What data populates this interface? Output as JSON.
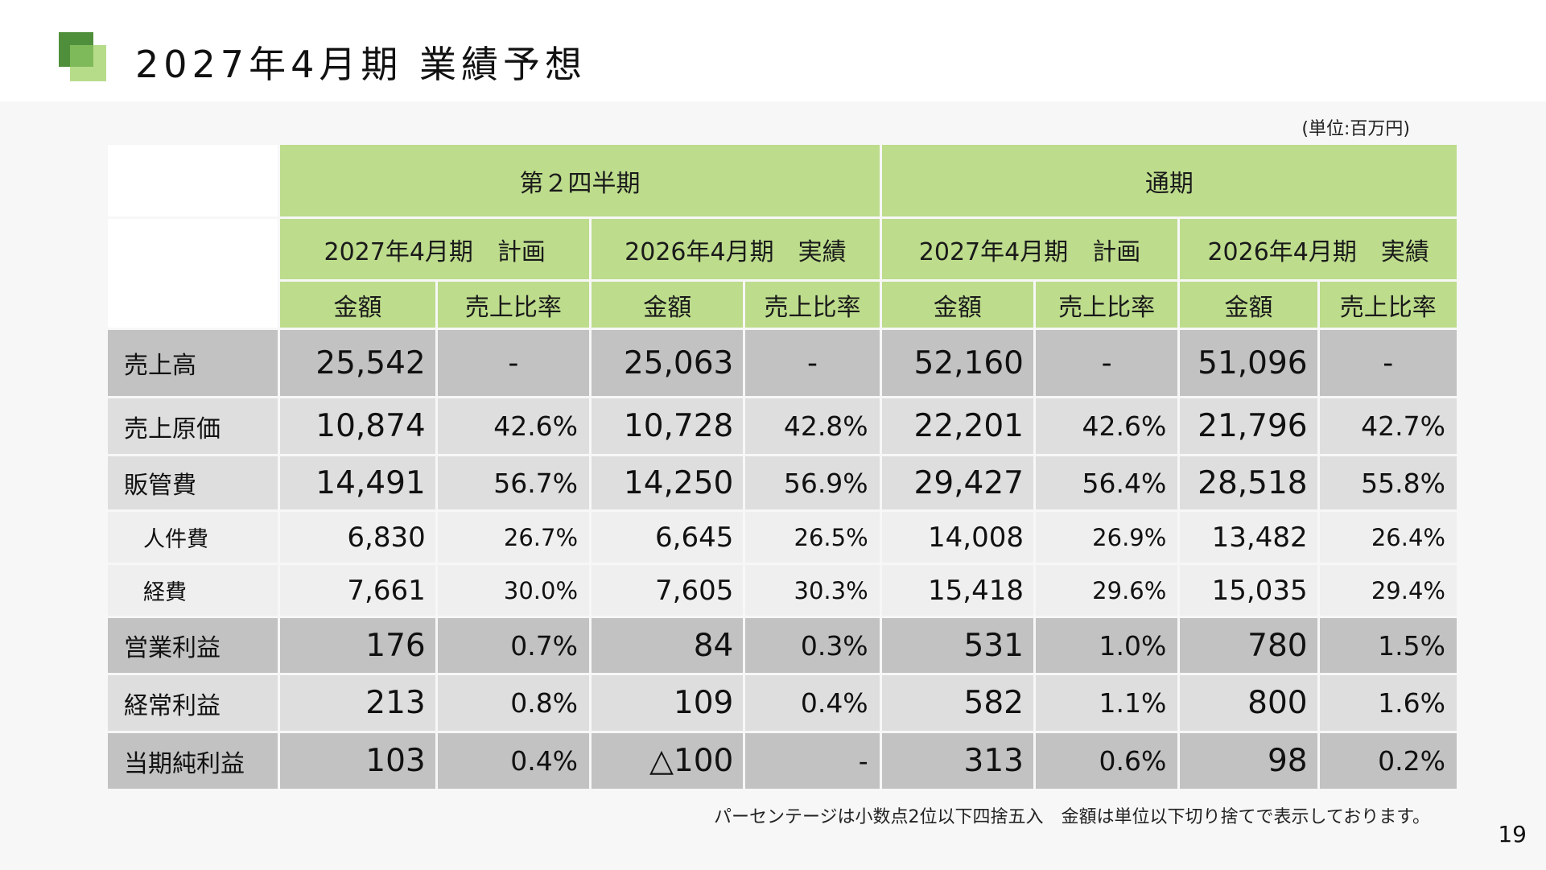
{
  "header": {
    "title": "2027年4月期 業績予想"
  },
  "unit_label": "(単位:百万円)",
  "table": {
    "group_headers": [
      "第２四半期",
      "通期"
    ],
    "period_headers": [
      "2027年4月期　計画",
      "2026年4月期　実績",
      "2027年4月期　計画",
      "2026年4月期　実績"
    ],
    "sub_headers": [
      "金額",
      "売上比率",
      "金額",
      "売上比率",
      "金額",
      "売上比率",
      "金額",
      "売上比率"
    ],
    "rows": [
      {
        "label": "売上高",
        "cells": [
          "25,542",
          "-",
          "25,063",
          "-",
          "52,160",
          "-",
          "51,096",
          "-"
        ]
      },
      {
        "label": "売上原価",
        "cells": [
          "10,874",
          "42.6%",
          "10,728",
          "42.8%",
          "22,201",
          "42.6%",
          "21,796",
          "42.7%"
        ]
      },
      {
        "label": "販管費",
        "cells": [
          "14,491",
          "56.7%",
          "14,250",
          "56.9%",
          "29,427",
          "56.4%",
          "28,518",
          "55.8%"
        ]
      },
      {
        "label": "人件費",
        "cells": [
          "6,830",
          "26.7%",
          "6,645",
          "26.5%",
          "14,008",
          "26.9%",
          "13,482",
          "26.4%"
        ]
      },
      {
        "label": "経費",
        "cells": [
          "7,661",
          "30.0%",
          "7,605",
          "30.3%",
          "15,418",
          "29.6%",
          "15,035",
          "29.4%"
        ]
      },
      {
        "label": "営業利益",
        "cells": [
          "176",
          "0.7%",
          "84",
          "0.3%",
          "531",
          "1.0%",
          "780",
          "1.5%"
        ]
      },
      {
        "label": "経常利益",
        "cells": [
          "213",
          "0.8%",
          "109",
          "0.4%",
          "582",
          "1.1%",
          "800",
          "1.6%"
        ]
      },
      {
        "label": "当期純利益",
        "cells": [
          "103",
          "0.4%",
          "△100",
          "-",
          "313",
          "0.6%",
          "98",
          "0.2%"
        ]
      }
    ]
  },
  "footnote": "パーセンテージは小数点2位以下四捨五入　金額は単位以下切り捨てで表示しております。",
  "page_number": "19",
  "colors": {
    "header_green": "#bddc8c",
    "logo_dark": "#4f8f3c",
    "logo_light": "#b6dc8a",
    "row_dark": "#c2c2c2",
    "row_mid": "#dedede",
    "row_light": "#efefef"
  }
}
